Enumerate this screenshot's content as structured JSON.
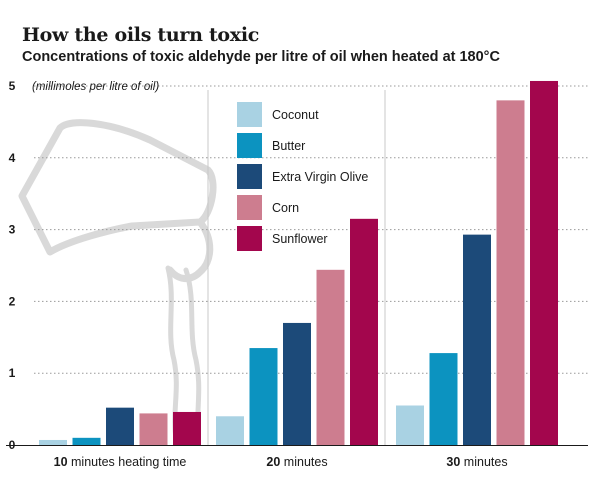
{
  "title": "How the oils turn toxic",
  "subtitle": "Concentrations of toxic aldehyde per litre of oil when heated at 180°C",
  "chart_data": {
    "type": "bar",
    "title": "How the oils turn toxic",
    "subtitle": "Concentrations of toxic aldehyde per litre of oil when heated at 180°C",
    "ylabel": "(millimoles per litre of oil)",
    "ylim": [
      0,
      5
    ],
    "yticks": [
      "0",
      "1",
      "2",
      "3",
      "4",
      "5"
    ],
    "categories": [
      {
        "bold": "10",
        "rest": " minutes heating time"
      },
      {
        "bold": "20",
        "rest": " minutes"
      },
      {
        "bold": "30",
        "rest": " minutes"
      }
    ],
    "series": [
      {
        "name": "Coconut",
        "color": "#a9d2e3",
        "values": [
          0.07,
          0.4,
          0.55
        ]
      },
      {
        "name": "Butter",
        "color": "#0c93c0",
        "values": [
          0.1,
          1.35,
          1.28
        ]
      },
      {
        "name": "Extra Virgin Olive",
        "color": "#1c4a79",
        "values": [
          0.52,
          1.7,
          2.93
        ]
      },
      {
        "name": "Corn",
        "color": "#cd7d8f",
        "values": [
          0.44,
          2.44,
          4.8
        ]
      },
      {
        "name": "Sunflower",
        "color": "#a3064d",
        "values": [
          0.46,
          3.15,
          5.07
        ]
      }
    ],
    "legend_position": "top-center",
    "grid": true
  }
}
